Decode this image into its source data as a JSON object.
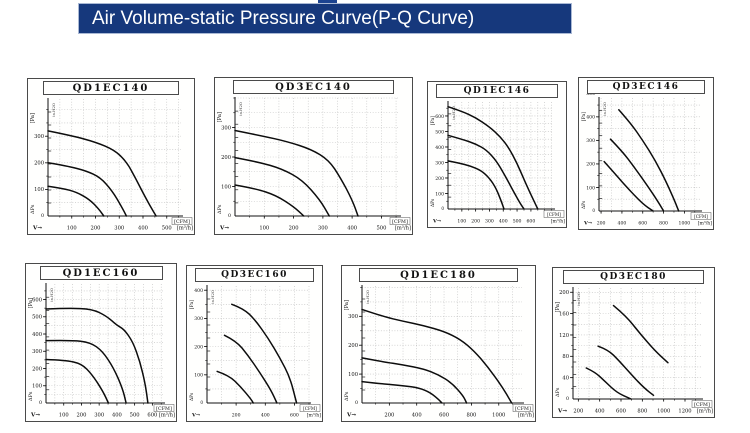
{
  "header": {
    "title": "Air Volume-static Pressure Curve(P-Q Curve)",
    "bg_color": "#16387c",
    "text_color": "#ffffff"
  },
  "axis_common": {
    "pressure_unit": "[Pa]",
    "inner_unit": "in.H2O",
    "origin_pressure": "ΔPs",
    "origin_zero": "0",
    "flow_arrow": "V→",
    "cfm_unit": "[CFM]",
    "m3h_unit": "[m³/h]",
    "curve_color": "#0d0d0d",
    "grid_color": "#bdbdbd"
  },
  "chart_data": [
    {
      "type": "line",
      "title": "QD1EC140",
      "xlabel": "[m³/h]",
      "ylabel": "[Pa]",
      "x2label": "[CFM]",
      "xlim": [
        0,
        560
      ],
      "ylim": [
        0,
        440
      ],
      "xticks": [
        100,
        200,
        300,
        400,
        500
      ],
      "yticks": [
        100,
        200,
        300
      ],
      "series": [
        {
          "name": "curve-high",
          "points": [
            [
              0,
              320
            ],
            [
              100,
              302
            ],
            [
              200,
              278
            ],
            [
              280,
              248
            ],
            [
              330,
              205
            ],
            [
              370,
              140
            ],
            [
              410,
              70
            ],
            [
              445,
              15
            ],
            [
              455,
              0
            ]
          ]
        },
        {
          "name": "curve-mid",
          "points": [
            [
              0,
              200
            ],
            [
              80,
              188
            ],
            [
              160,
              170
            ],
            [
              220,
              145
            ],
            [
              270,
              95
            ],
            [
              310,
              35
            ],
            [
              330,
              0
            ]
          ]
        },
        {
          "name": "curve-low",
          "points": [
            [
              0,
              112
            ],
            [
              60,
              104
            ],
            [
              120,
              90
            ],
            [
              175,
              62
            ],
            [
              215,
              25
            ],
            [
              235,
              0
            ]
          ]
        }
      ]
    },
    {
      "type": "line",
      "title": "QD3EC140",
      "xlabel": "[m³/h]",
      "ylabel": "[Pa]",
      "x2label": "[CFM]",
      "xlim": [
        0,
        560
      ],
      "ylim": [
        0,
        400
      ],
      "xticks": [
        100,
        200,
        300,
        400,
        500
      ],
      "yticks": [
        100,
        200,
        300
      ],
      "series": [
        {
          "name": "curve-high",
          "points": [
            [
              0,
              290
            ],
            [
              90,
              272
            ],
            [
              180,
              252
            ],
            [
              260,
              226
            ],
            [
              320,
              190
            ],
            [
              360,
              130
            ],
            [
              400,
              55
            ],
            [
              420,
              0
            ]
          ]
        },
        {
          "name": "curve-mid",
          "points": [
            [
              0,
              198
            ],
            [
              80,
              183
            ],
            [
              160,
              160
            ],
            [
              230,
              122
            ],
            [
              290,
              55
            ],
            [
              322,
              0
            ]
          ]
        },
        {
          "name": "curve-low",
          "points": [
            [
              0,
              105
            ],
            [
              70,
              93
            ],
            [
              140,
              70
            ],
            [
              200,
              32
            ],
            [
              235,
              0
            ]
          ]
        }
      ]
    },
    {
      "type": "line",
      "title": "QD1EC146",
      "xlabel": "[m³/h]",
      "ylabel": "[Pa]",
      "x2label": "[CFM]",
      "xlim": [
        0,
        760
      ],
      "ylim": [
        0,
        690
      ],
      "xticks": [
        100,
        200,
        300,
        400,
        500,
        600
      ],
      "yticks": [
        100,
        200,
        300,
        400,
        500,
        600
      ],
      "series": [
        {
          "name": "curve-high",
          "points": [
            [
              0,
              660
            ],
            [
              100,
              630
            ],
            [
              200,
              590
            ],
            [
              300,
              530
            ],
            [
              380,
              465
            ],
            [
              440,
              395
            ],
            [
              500,
              295
            ],
            [
              560,
              170
            ],
            [
              620,
              55
            ],
            [
              650,
              0
            ]
          ]
        },
        {
          "name": "curve-mid",
          "points": [
            [
              0,
              475
            ],
            [
              100,
              450
            ],
            [
              200,
              420
            ],
            [
              280,
              380
            ],
            [
              350,
              310
            ],
            [
              410,
              220
            ],
            [
              470,
              120
            ],
            [
              520,
              40
            ],
            [
              550,
              0
            ]
          ]
        },
        {
          "name": "curve-low",
          "points": [
            [
              0,
              310
            ],
            [
              80,
              296
            ],
            [
              160,
              278
            ],
            [
              240,
              248
            ],
            [
              300,
              200
            ],
            [
              350,
              130
            ],
            [
              390,
              40
            ],
            [
              405,
              0
            ]
          ]
        }
      ]
    },
    {
      "type": "line",
      "title": "QD3EC146",
      "xlabel": "[m³/h]",
      "ylabel": "[Pa]",
      "x2label": "[CFM]",
      "xlim": [
        180,
        1150
      ],
      "ylim": [
        0,
        480
      ],
      "xticks": [
        200,
        400,
        600,
        800,
        1000
      ],
      "yticks": [
        100,
        200,
        300,
        400,
        500
      ],
      "series": [
        {
          "name": "curve-high",
          "points": [
            [
              370,
              430
            ],
            [
              480,
              375
            ],
            [
              600,
              300
            ],
            [
              720,
              215
            ],
            [
              830,
              120
            ],
            [
              910,
              40
            ],
            [
              945,
              0
            ]
          ]
        },
        {
          "name": "curve-mid",
          "points": [
            [
              290,
              305
            ],
            [
              400,
              255
            ],
            [
              520,
              185
            ],
            [
              650,
              105
            ],
            [
              760,
              30
            ],
            [
              800,
              0
            ]
          ]
        },
        {
          "name": "curve-low",
          "points": [
            [
              230,
              210
            ],
            [
              340,
              155
            ],
            [
              470,
              90
            ],
            [
              600,
              30
            ],
            [
              700,
              0
            ]
          ]
        }
      ]
    },
    {
      "type": "line",
      "title": "QD1EC160",
      "xlabel": "[m³/h]",
      "ylabel": "[Pa]",
      "x2label": "[CFM]",
      "xlim": [
        0,
        660
      ],
      "ylim": [
        0,
        690
      ],
      "xticks": [
        100,
        200,
        300,
        400,
        500,
        600
      ],
      "yticks": [
        100,
        200,
        300,
        400,
        500,
        600
      ],
      "series": [
        {
          "name": "curve-high",
          "points": [
            [
              0,
              545
            ],
            [
              130,
              550
            ],
            [
              260,
              545
            ],
            [
              340,
              505
            ],
            [
              400,
              450
            ],
            [
              440,
              428
            ],
            [
              490,
              355
            ],
            [
              530,
              240
            ],
            [
              560,
              110
            ],
            [
              575,
              0
            ]
          ]
        },
        {
          "name": "curve-mid",
          "points": [
            [
              0,
              362
            ],
            [
              140,
              365
            ],
            [
              250,
              352
            ],
            [
              320,
              300
            ],
            [
              380,
              205
            ],
            [
              430,
              90
            ],
            [
              452,
              0
            ]
          ]
        },
        {
          "name": "curve-low",
          "points": [
            [
              0,
              252
            ],
            [
              110,
              248
            ],
            [
              200,
              228
            ],
            [
              260,
              165
            ],
            [
              320,
              70
            ],
            [
              352,
              0
            ]
          ]
        }
      ]
    },
    {
      "type": "line",
      "title": "QD3EC160",
      "xlabel": "[m³/h]",
      "ylabel": "[Pa]",
      "x2label": "[CFM]",
      "xlim": [
        0,
        700
      ],
      "ylim": [
        0,
        415
      ],
      "xticks": [
        200,
        400,
        600
      ],
      "yticks": [
        100,
        200,
        300,
        400
      ],
      "series": [
        {
          "name": "curve-high",
          "points": [
            [
              170,
              350
            ],
            [
              250,
              335
            ],
            [
              330,
              295
            ],
            [
              420,
              230
            ],
            [
              500,
              160
            ],
            [
              570,
              90
            ],
            [
              615,
              0
            ]
          ]
        },
        {
          "name": "curve-mid",
          "points": [
            [
              120,
              240
            ],
            [
              200,
              220
            ],
            [
              280,
              170
            ],
            [
              360,
              110
            ],
            [
              440,
              45
            ],
            [
              480,
              0
            ]
          ]
        },
        {
          "name": "curve-low",
          "points": [
            [
              70,
              112
            ],
            [
              150,
              98
            ],
            [
              230,
              58
            ],
            [
              300,
              15
            ],
            [
              318,
              0
            ]
          ]
        }
      ]
    },
    {
      "type": "line",
      "title": "QD1EC180",
      "xlabel": "[m³/h]",
      "ylabel": "[Pa]",
      "x2label": "[CFM]",
      "xlim": [
        0,
        1170
      ],
      "ylim": [
        0,
        405
      ],
      "xticks": [
        200,
        400,
        600,
        800,
        1000
      ],
      "yticks": [
        100,
        200,
        300
      ],
      "series": [
        {
          "name": "curve-high",
          "points": [
            [
              0,
              324
            ],
            [
              150,
              300
            ],
            [
              300,
              283
            ],
            [
              450,
              268
            ],
            [
              600,
              248
            ],
            [
              720,
              220
            ],
            [
              820,
              180
            ],
            [
              920,
              125
            ],
            [
              1020,
              60
            ],
            [
              1095,
              0
            ]
          ]
        },
        {
          "name": "curve-mid",
          "points": [
            [
              0,
              156
            ],
            [
              150,
              143
            ],
            [
              300,
              132
            ],
            [
              450,
              118
            ],
            [
              560,
              98
            ],
            [
              660,
              68
            ],
            [
              740,
              25
            ],
            [
              765,
              0
            ]
          ]
        },
        {
          "name": "curve-low",
          "points": [
            [
              0,
              74
            ],
            [
              150,
              66
            ],
            [
              300,
              60
            ],
            [
              420,
              52
            ],
            [
              500,
              36
            ],
            [
              560,
              12
            ],
            [
              585,
              0
            ]
          ]
        }
      ]
    },
    {
      "type": "line",
      "title": "QD3EC180",
      "xlabel": "[m³/h]",
      "ylabel": "[Pa]",
      "x2label": "[CFM]",
      "xlim": [
        150,
        1350
      ],
      "ylim": [
        0,
        208
      ],
      "xticks": [
        200,
        400,
        600,
        800,
        1000,
        1200
      ],
      "yticks": [
        40,
        80,
        120,
        160,
        200
      ],
      "series": [
        {
          "name": "curve-high",
          "points": [
            [
              530,
              175
            ],
            [
              650,
              155
            ],
            [
              780,
              122
            ],
            [
              920,
              90
            ],
            [
              1040,
              68
            ]
          ]
        },
        {
          "name": "curve-mid",
          "points": [
            [
              385,
              99
            ],
            [
              480,
              92
            ],
            [
              580,
              72
            ],
            [
              700,
              45
            ],
            [
              820,
              20
            ],
            [
              905,
              7
            ]
          ]
        },
        {
          "name": "curve-low",
          "points": [
            [
              275,
              58
            ],
            [
              360,
              50
            ],
            [
              450,
              33
            ],
            [
              560,
              12
            ],
            [
              695,
              0
            ]
          ]
        }
      ]
    }
  ]
}
